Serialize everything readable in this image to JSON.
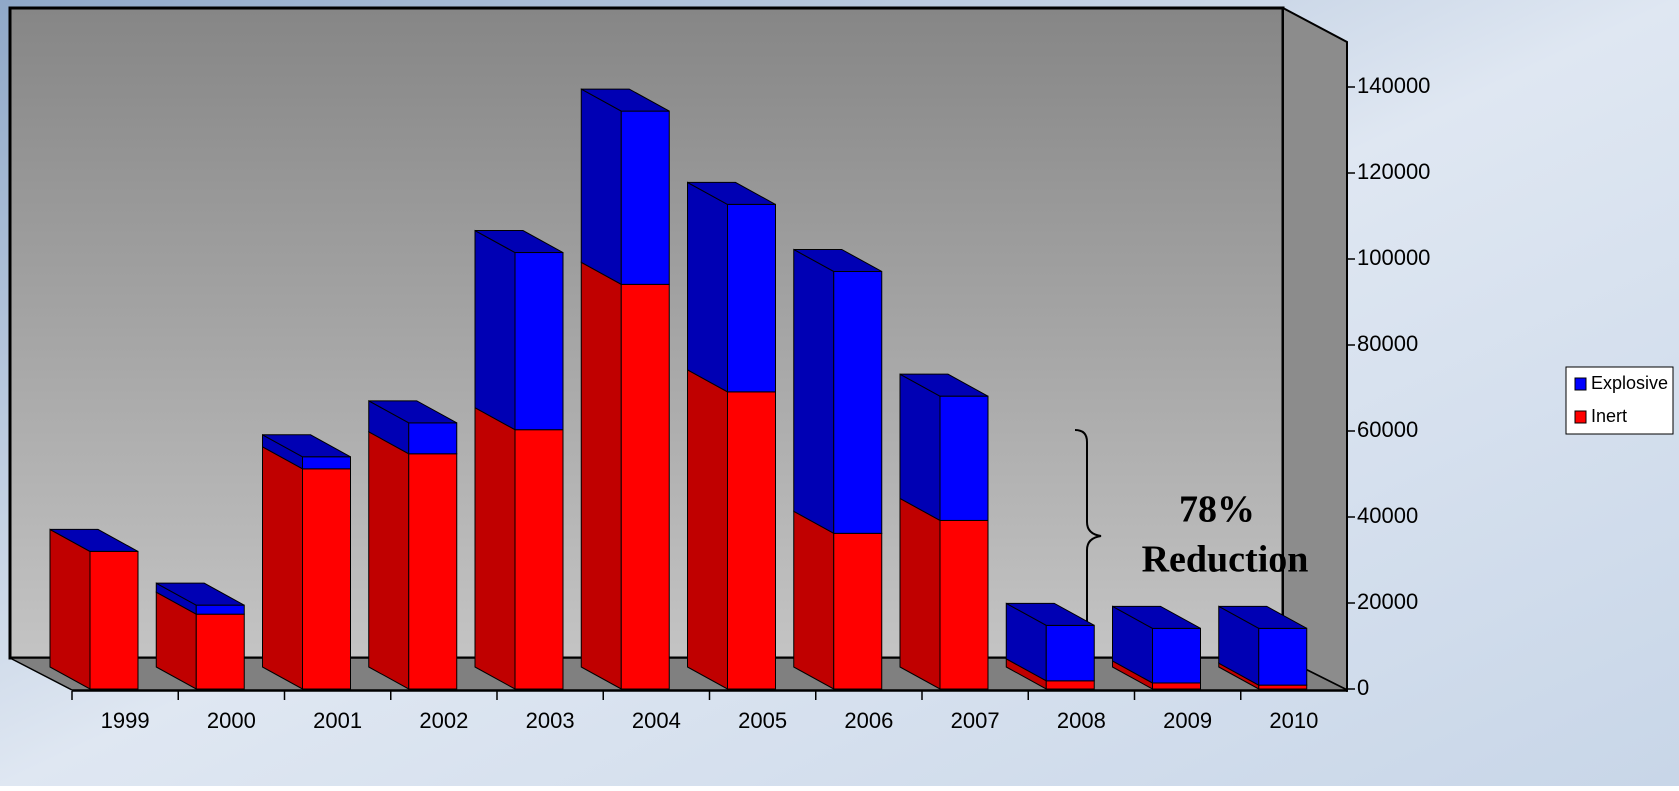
{
  "chart_data": {
    "type": "bar3d_stacked",
    "categories": [
      "1999",
      "2000",
      "2001",
      "2002",
      "2003",
      "2004",
      "2005",
      "2006",
      "2007",
      "2008",
      "2009",
      "2010"
    ],
    "series": [
      {
        "name": "Inert",
        "color": "#ff0000",
        "values": [
          32000,
          17400,
          51200,
          54700,
          60300,
          94100,
          69100,
          36200,
          39200,
          1900,
          1400,
          900
        ]
      },
      {
        "name": "Explosive",
        "color": "#0000ff",
        "values": [
          0,
          2100,
          2800,
          7200,
          41200,
          40300,
          43600,
          60900,
          28900,
          12900,
          12700,
          13200
        ]
      }
    ],
    "ylim": [
      0,
      140000
    ],
    "yticks": [
      0,
      20000,
      40000,
      60000,
      80000,
      100000,
      120000,
      140000
    ],
    "annotation": [
      "78%",
      "Reduction"
    ],
    "legend": "right"
  }
}
